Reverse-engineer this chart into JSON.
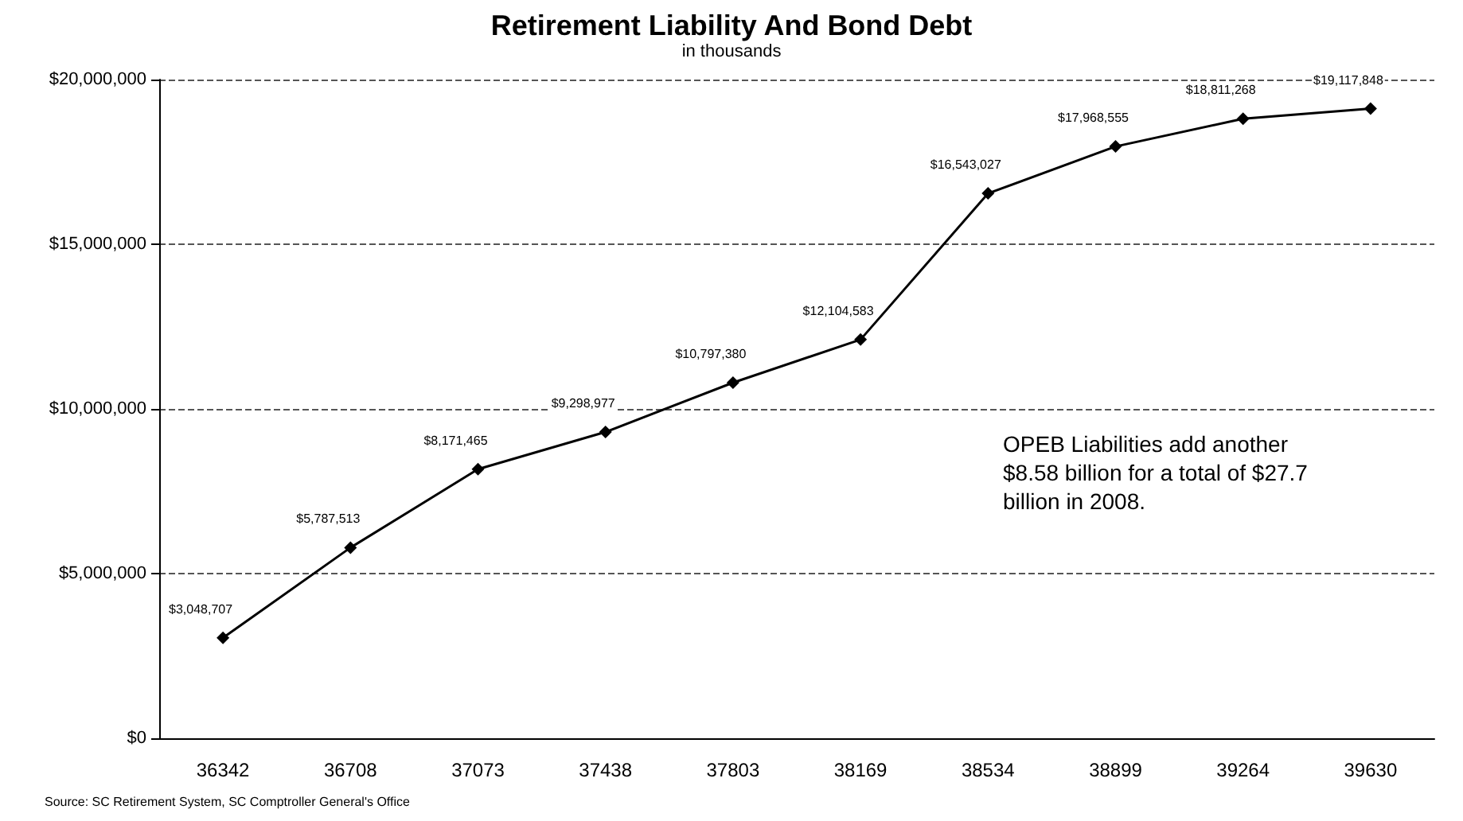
{
  "chart_data": {
    "type": "line",
    "title": "Retirement Liability And Bond Debt",
    "subtitle": "in thousands",
    "categories": [
      "36342",
      "36708",
      "37073",
      "37438",
      "37803",
      "38169",
      "38534",
      "38899",
      "39264",
      "39630"
    ],
    "series": [
      {
        "color": "#000000",
        "values": [
          3048707,
          5787513,
          8171465,
          9298977,
          10797380,
          12104583,
          16543027,
          17968555,
          18811268,
          19117848
        ],
        "value_labels": [
          "$3,048,707",
          "$5,787,513",
          "$8,171,465",
          "$9,298,977",
          "$10,797,380",
          "$12,104,583",
          "$16,543,027",
          "$17,968,555",
          "$18,811,268",
          "$19,117,848"
        ]
      }
    ],
    "ylim": [
      0,
      20000000
    ],
    "yticks": [
      {
        "value": 0,
        "label": "$0"
      },
      {
        "value": 5000000,
        "label": "$5,000,000"
      },
      {
        "value": 10000000,
        "label": "$10,000,000"
      },
      {
        "value": 15000000,
        "label": "$15,000,000"
      },
      {
        "value": 20000000,
        "label": "$20,000,000"
      }
    ],
    "grid": "y",
    "marker": "diamond",
    "line_style": "solid",
    "annotations": [
      "OPEB Liabilities add another $8.58 billion for a total of $27.7 billion in 2008.",
      "Source: SC Retirement System, SC Comptroller General's Office"
    ]
  }
}
